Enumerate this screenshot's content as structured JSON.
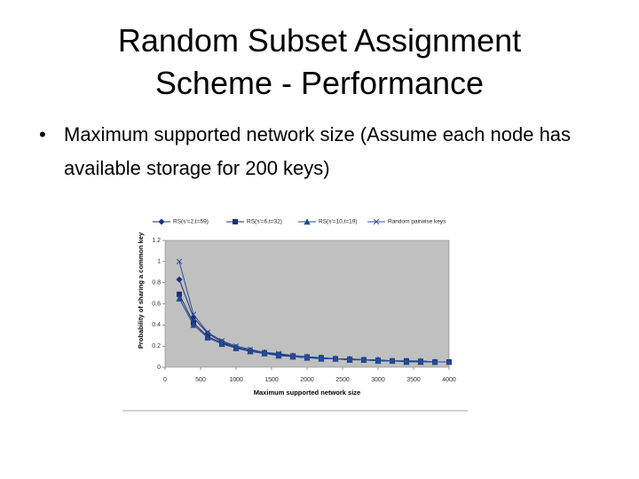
{
  "slide": {
    "title": "Random Subset Assignment Scheme - Performance",
    "bullet": "Maximum supported network size (Assume each node has available storage for 200 keys)"
  },
  "chart_data": {
    "type": "line",
    "x_label": "Maximum supported network size",
    "y_label": "Probability of sharing a common key",
    "x": [
      200,
      400,
      600,
      800,
      1000,
      1200,
      1400,
      1600,
      1800,
      2000,
      2200,
      2400,
      2600,
      2800,
      3000,
      3200,
      3400,
      3600,
      3800,
      4000
    ],
    "series": [
      {
        "name": "RS(s'=2,t=59)",
        "color": "#1a2f7a",
        "marker": "diamond",
        "values": [
          0.83,
          0.47,
          0.32,
          0.24,
          0.19,
          0.16,
          0.14,
          0.12,
          0.11,
          0.1,
          0.09,
          0.08,
          0.08,
          0.07,
          0.07,
          0.06,
          0.06,
          0.06,
          0.05,
          0.05
        ]
      },
      {
        "name": "RS(s'=6,t=32)",
        "color": "#1a2f7a",
        "marker": "square",
        "values": [
          0.69,
          0.42,
          0.29,
          0.23,
          0.18,
          0.15,
          0.13,
          0.12,
          0.1,
          0.09,
          0.09,
          0.08,
          0.07,
          0.07,
          0.06,
          0.06,
          0.06,
          0.05,
          0.05,
          0.05
        ]
      },
      {
        "name": "RS(s'=10,t=19)",
        "color": "#1f4a8a",
        "marker": "triangle",
        "values": [
          0.65,
          0.4,
          0.28,
          0.22,
          0.18,
          0.15,
          0.13,
          0.11,
          0.1,
          0.09,
          0.08,
          0.08,
          0.07,
          0.07,
          0.06,
          0.06,
          0.05,
          0.05,
          0.05,
          0.05
        ]
      },
      {
        "name": "Random pairwise keys",
        "color": "#2a4f9a",
        "marker": "x",
        "values": [
          1,
          0.5,
          0.33,
          0.25,
          0.2,
          0.17,
          0.14,
          0.13,
          0.11,
          0.1,
          0.09,
          0.08,
          0.08,
          0.07,
          0.07,
          0.06,
          0.06,
          0.06,
          0.05,
          0.05
        ]
      }
    ],
    "xlim": [
      0,
      4000
    ],
    "xticks": [
      0,
      500,
      1000,
      1500,
      2000,
      2500,
      3000,
      3500,
      4000
    ],
    "ylim": [
      0,
      1.2
    ],
    "yticks": [
      0,
      0.2,
      0.4,
      0.6,
      0.8,
      1,
      1.2
    ],
    "plot_background": "#c0c0c0",
    "grid": false,
    "legend": "top"
  }
}
